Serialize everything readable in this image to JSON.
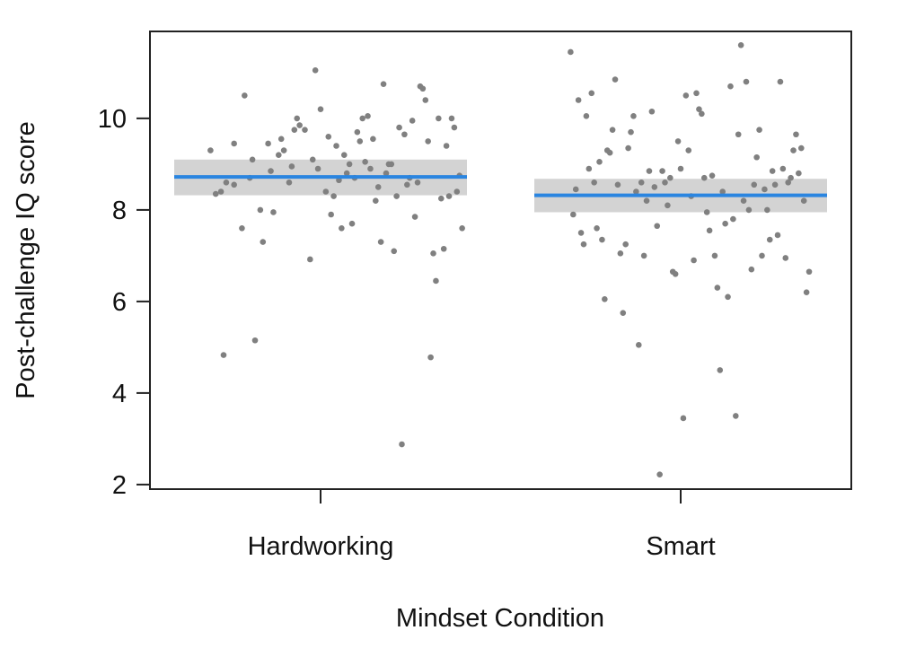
{
  "chart_data": {
    "type": "scatter",
    "title": "",
    "xlabel": "Mindset Condition",
    "ylabel": "Post-challenge IQ score",
    "ylim": [
      1.9,
      11.9
    ],
    "yticks": [
      2,
      4,
      6,
      8,
      10
    ],
    "grid": false,
    "legend": "none",
    "categories": [
      "Hardworking",
      "Smart"
    ],
    "colors": {
      "points": "#808080",
      "mean_line": "#2a85e0",
      "ci_band": "#d3d3d3",
      "axis": "#222222"
    },
    "groups": [
      {
        "category": "Hardworking",
        "mean": 8.72,
        "ci": [
          8.32,
          9.1
        ],
        "points": [
          {
            "j": -0.42,
            "y": 9.3
          },
          {
            "j": -0.4,
            "y": 8.35
          },
          {
            "j": -0.38,
            "y": 8.4
          },
          {
            "j": -0.37,
            "y": 4.83
          },
          {
            "j": -0.36,
            "y": 8.6
          },
          {
            "j": -0.33,
            "y": 9.45
          },
          {
            "j": -0.33,
            "y": 8.55
          },
          {
            "j": -0.3,
            "y": 7.6
          },
          {
            "j": -0.29,
            "y": 10.5
          },
          {
            "j": -0.27,
            "y": 8.7
          },
          {
            "j": -0.26,
            "y": 9.1
          },
          {
            "j": -0.25,
            "y": 5.15
          },
          {
            "j": -0.23,
            "y": 8.0
          },
          {
            "j": -0.22,
            "y": 7.3
          },
          {
            "j": -0.2,
            "y": 9.45
          },
          {
            "j": -0.19,
            "y": 8.85
          },
          {
            "j": -0.18,
            "y": 7.95
          },
          {
            "j": -0.16,
            "y": 9.2
          },
          {
            "j": -0.15,
            "y": 9.55
          },
          {
            "j": -0.14,
            "y": 9.3
          },
          {
            "j": -0.12,
            "y": 8.6
          },
          {
            "j": -0.11,
            "y": 8.95
          },
          {
            "j": -0.1,
            "y": 9.75
          },
          {
            "j": -0.09,
            "y": 10.0
          },
          {
            "j": -0.08,
            "y": 9.85
          },
          {
            "j": -0.06,
            "y": 9.75
          },
          {
            "j": -0.04,
            "y": 6.92
          },
          {
            "j": -0.03,
            "y": 9.1
          },
          {
            "j": -0.02,
            "y": 11.05
          },
          {
            "j": -0.01,
            "y": 8.9
          },
          {
            "j": 0.0,
            "y": 10.2
          },
          {
            "j": 0.02,
            "y": 8.4
          },
          {
            "j": 0.03,
            "y": 9.6
          },
          {
            "j": 0.04,
            "y": 7.9
          },
          {
            "j": 0.05,
            "y": 8.3
          },
          {
            "j": 0.06,
            "y": 9.4
          },
          {
            "j": 0.07,
            "y": 8.65
          },
          {
            "j": 0.08,
            "y": 7.6
          },
          {
            "j": 0.09,
            "y": 9.2
          },
          {
            "j": 0.1,
            "y": 8.8
          },
          {
            "j": 0.11,
            "y": 9.0
          },
          {
            "j": 0.12,
            "y": 7.7
          },
          {
            "j": 0.13,
            "y": 8.7
          },
          {
            "j": 0.14,
            "y": 9.7
          },
          {
            "j": 0.15,
            "y": 9.5
          },
          {
            "j": 0.16,
            "y": 10.0
          },
          {
            "j": 0.17,
            "y": 9.05
          },
          {
            "j": 0.18,
            "y": 10.05
          },
          {
            "j": 0.19,
            "y": 8.9
          },
          {
            "j": 0.2,
            "y": 9.55
          },
          {
            "j": 0.21,
            "y": 8.2
          },
          {
            "j": 0.22,
            "y": 8.5
          },
          {
            "j": 0.23,
            "y": 7.3
          },
          {
            "j": 0.24,
            "y": 10.75
          },
          {
            "j": 0.25,
            "y": 8.8
          },
          {
            "j": 0.26,
            "y": 9.0
          },
          {
            "j": 0.27,
            "y": 9.0
          },
          {
            "j": 0.28,
            "y": 7.1
          },
          {
            "j": 0.29,
            "y": 8.3
          },
          {
            "j": 0.3,
            "y": 9.8
          },
          {
            "j": 0.31,
            "y": 2.88
          },
          {
            "j": 0.32,
            "y": 9.65
          },
          {
            "j": 0.33,
            "y": 8.55
          },
          {
            "j": 0.34,
            "y": 8.7
          },
          {
            "j": 0.35,
            "y": 9.95
          },
          {
            "j": 0.36,
            "y": 7.85
          },
          {
            "j": 0.37,
            "y": 8.6
          },
          {
            "j": 0.38,
            "y": 10.7
          },
          {
            "j": 0.39,
            "y": 10.65
          },
          {
            "j": 0.4,
            "y": 10.4
          },
          {
            "j": 0.41,
            "y": 9.5
          },
          {
            "j": 0.42,
            "y": 4.78
          },
          {
            "j": 0.43,
            "y": 7.05
          },
          {
            "j": 0.44,
            "y": 6.45
          },
          {
            "j": 0.45,
            "y": 10.0
          },
          {
            "j": 0.46,
            "y": 8.25
          },
          {
            "j": 0.47,
            "y": 7.15
          },
          {
            "j": 0.48,
            "y": 9.4
          },
          {
            "j": 0.49,
            "y": 8.3
          },
          {
            "j": 0.5,
            "y": 10.0
          },
          {
            "j": 0.51,
            "y": 9.8
          },
          {
            "j": 0.52,
            "y": 8.4
          },
          {
            "j": 0.53,
            "y": 8.75
          },
          {
            "j": 0.54,
            "y": 7.6
          }
        ]
      },
      {
        "category": "Smart",
        "mean": 8.32,
        "ci": [
          7.95,
          8.68
        ],
        "points": [
          {
            "j": -0.42,
            "y": 11.45
          },
          {
            "j": -0.41,
            "y": 7.9
          },
          {
            "j": -0.4,
            "y": 8.45
          },
          {
            "j": -0.39,
            "y": 10.4
          },
          {
            "j": -0.38,
            "y": 7.5
          },
          {
            "j": -0.37,
            "y": 7.25
          },
          {
            "j": -0.36,
            "y": 10.05
          },
          {
            "j": -0.35,
            "y": 8.9
          },
          {
            "j": -0.34,
            "y": 10.55
          },
          {
            "j": -0.33,
            "y": 8.6
          },
          {
            "j": -0.32,
            "y": 7.6
          },
          {
            "j": -0.31,
            "y": 9.05
          },
          {
            "j": -0.3,
            "y": 7.35
          },
          {
            "j": -0.29,
            "y": 6.05
          },
          {
            "j": -0.28,
            "y": 9.3
          },
          {
            "j": -0.27,
            "y": 9.25
          },
          {
            "j": -0.26,
            "y": 9.75
          },
          {
            "j": -0.25,
            "y": 10.85
          },
          {
            "j": -0.24,
            "y": 8.55
          },
          {
            "j": -0.23,
            "y": 7.05
          },
          {
            "j": -0.22,
            "y": 5.75
          },
          {
            "j": -0.21,
            "y": 7.25
          },
          {
            "j": -0.2,
            "y": 9.35
          },
          {
            "j": -0.19,
            "y": 9.7
          },
          {
            "j": -0.18,
            "y": 10.05
          },
          {
            "j": -0.17,
            "y": 8.4
          },
          {
            "j": -0.16,
            "y": 5.05
          },
          {
            "j": -0.15,
            "y": 8.6
          },
          {
            "j": -0.14,
            "y": 7.0
          },
          {
            "j": -0.13,
            "y": 8.2
          },
          {
            "j": -0.12,
            "y": 8.85
          },
          {
            "j": -0.11,
            "y": 10.15
          },
          {
            "j": -0.1,
            "y": 8.5
          },
          {
            "j": -0.09,
            "y": 7.65
          },
          {
            "j": -0.08,
            "y": 2.22
          },
          {
            "j": -0.07,
            "y": 8.85
          },
          {
            "j": -0.06,
            "y": 8.6
          },
          {
            "j": -0.05,
            "y": 8.1
          },
          {
            "j": -0.04,
            "y": 8.7
          },
          {
            "j": -0.03,
            "y": 6.65
          },
          {
            "j": -0.02,
            "y": 6.6
          },
          {
            "j": -0.01,
            "y": 9.5
          },
          {
            "j": 0.0,
            "y": 8.9
          },
          {
            "j": 0.01,
            "y": 3.45
          },
          {
            "j": 0.02,
            "y": 10.5
          },
          {
            "j": 0.03,
            "y": 9.3
          },
          {
            "j": 0.04,
            "y": 8.3
          },
          {
            "j": 0.05,
            "y": 6.9
          },
          {
            "j": 0.06,
            "y": 10.55
          },
          {
            "j": 0.07,
            "y": 10.2
          },
          {
            "j": 0.08,
            "y": 10.1
          },
          {
            "j": 0.09,
            "y": 8.7
          },
          {
            "j": 0.1,
            "y": 7.95
          },
          {
            "j": 0.11,
            "y": 7.55
          },
          {
            "j": 0.12,
            "y": 8.75
          },
          {
            "j": 0.13,
            "y": 7.0
          },
          {
            "j": 0.14,
            "y": 6.3
          },
          {
            "j": 0.15,
            "y": 4.5
          },
          {
            "j": 0.16,
            "y": 8.4
          },
          {
            "j": 0.17,
            "y": 7.7
          },
          {
            "j": 0.18,
            "y": 6.1
          },
          {
            "j": 0.19,
            "y": 10.7
          },
          {
            "j": 0.2,
            "y": 7.8
          },
          {
            "j": 0.21,
            "y": 3.5
          },
          {
            "j": 0.22,
            "y": 9.65
          },
          {
            "j": 0.23,
            "y": 11.6
          },
          {
            "j": 0.24,
            "y": 8.2
          },
          {
            "j": 0.25,
            "y": 10.8
          },
          {
            "j": 0.26,
            "y": 8.0
          },
          {
            "j": 0.27,
            "y": 6.7
          },
          {
            "j": 0.28,
            "y": 8.55
          },
          {
            "j": 0.29,
            "y": 9.15
          },
          {
            "j": 0.3,
            "y": 9.75
          },
          {
            "j": 0.31,
            "y": 7.0
          },
          {
            "j": 0.32,
            "y": 8.45
          },
          {
            "j": 0.33,
            "y": 8.0
          },
          {
            "j": 0.34,
            "y": 7.35
          },
          {
            "j": 0.35,
            "y": 8.85
          },
          {
            "j": 0.36,
            "y": 8.55
          },
          {
            "j": 0.37,
            "y": 7.45
          },
          {
            "j": 0.38,
            "y": 10.8
          },
          {
            "j": 0.39,
            "y": 8.9
          },
          {
            "j": 0.4,
            "y": 6.95
          },
          {
            "j": 0.41,
            "y": 8.6
          },
          {
            "j": 0.42,
            "y": 8.7
          },
          {
            "j": 0.43,
            "y": 9.3
          },
          {
            "j": 0.44,
            "y": 9.65
          },
          {
            "j": 0.45,
            "y": 8.8
          },
          {
            "j": 0.46,
            "y": 9.35
          },
          {
            "j": 0.47,
            "y": 8.2
          },
          {
            "j": 0.48,
            "y": 6.2
          },
          {
            "j": 0.49,
            "y": 6.65
          }
        ]
      }
    ]
  }
}
